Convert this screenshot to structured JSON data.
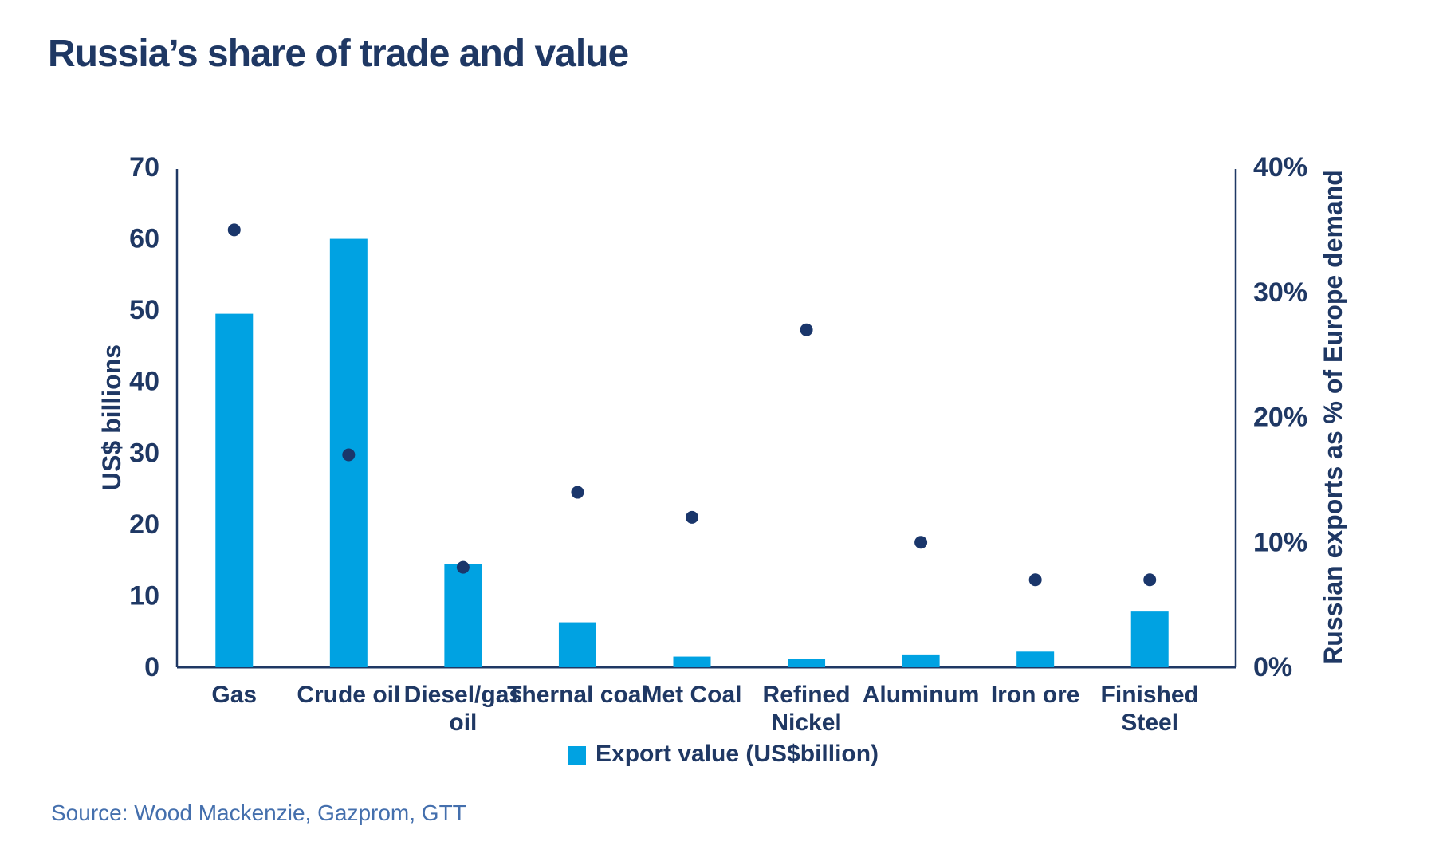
{
  "title": "Russia’s share of trade and value",
  "source": "Source: Wood Mackenzie, Gazprom, GTT",
  "legend": {
    "label": "Export value (US$billion)",
    "marker": "square-icon"
  },
  "colors": {
    "bar": "#00A2E2",
    "dot": "#1A366B",
    "axis": "#1F3864",
    "text": "#1F3864",
    "source_text": "#446FAD",
    "background": "#FFFFFF"
  },
  "chart_data": {
    "type": "bar",
    "subtype": "bar+scatter-dual-axis",
    "grid": false,
    "legend_position": "bottom",
    "title": "Russia’s share of trade and value",
    "categories": [
      "Gas",
      "Crude oil",
      "Diesel/gas oil",
      "Thernal coal",
      "Met Coal",
      "Refined Nickel",
      "Aluminum",
      "Iron ore",
      "Finished Steel"
    ],
    "category_lines": [
      [
        "Gas"
      ],
      [
        "Crude oil"
      ],
      [
        "Diesel/gas",
        "oil"
      ],
      [
        "Thernal coal"
      ],
      [
        "Met Coal"
      ],
      [
        "Refined",
        "Nickel"
      ],
      [
        "Aluminum"
      ],
      [
        "Iron ore"
      ],
      [
        "Finished",
        "Steel"
      ]
    ],
    "series": [
      {
        "name": "Export value (US$billion)",
        "type": "bar",
        "axis": "left",
        "values": [
          49.5,
          60,
          14.5,
          6.3,
          1.5,
          1.2,
          1.8,
          2.2,
          7.8
        ]
      },
      {
        "name": "Russian exports as % of Europe demand",
        "type": "scatter",
        "axis": "right",
        "values": [
          35,
          17,
          8,
          14,
          12,
          27,
          10,
          7,
          7
        ]
      }
    ],
    "axes": {
      "left": {
        "label": "US$ billions",
        "min": 0,
        "max": 70,
        "ticks": [
          0,
          10,
          20,
          30,
          40,
          50,
          60,
          70
        ]
      },
      "right": {
        "label": "Russian exports as % of Europe demand",
        "min": 0,
        "max": 40,
        "ticks": [
          0,
          10,
          20,
          30,
          40
        ],
        "tick_suffix": "%"
      }
    }
  }
}
